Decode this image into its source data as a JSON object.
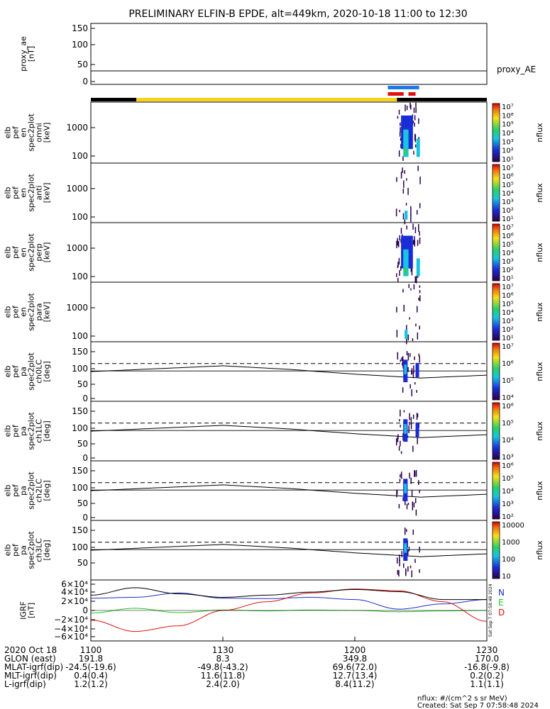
{
  "title": "PRELIMINARY ELFIN-B EPDE, alt=449km, 2020-10-18 11:00 to 12:30",
  "colors": {
    "spec_dark": "#2a004a",
    "spec_blue": "#1a2cd6",
    "spec_cyan": "#19c4e0",
    "spec_green": "#2ad064",
    "grf_n": "#1f2fbf",
    "grf_e": "#1ec41e",
    "grf_d": "#dd1111",
    "bar_yellow": "#f7d417",
    "bar_black": "#000000",
    "bar_blue": "#1e78e6",
    "bar_red": "#e01010"
  },
  "status_bars": {
    "orbit_bar": [
      {
        "from": 0,
        "to": 11.5,
        "color": "black"
      },
      {
        "from": 11.5,
        "to": 77.3,
        "color": "yellow"
      },
      {
        "from": 77.3,
        "to": 100,
        "color": "black"
      }
    ],
    "blue_bar": {
      "from": 75.0,
      "to": 82.9
    },
    "red_bars": [
      {
        "from": 75.0,
        "to": 79.0
      },
      {
        "from": 80.2,
        "to": 82.0
      }
    ]
  },
  "colorbar_unit": "nflux",
  "panels": [
    {
      "id": "proxy_ae",
      "ylabel": [
        "proxy_ae",
        "[nT]"
      ],
      "ticks": [
        "150",
        "100",
        "50",
        "0"
      ],
      "right_label": "proxy_AE"
    },
    {
      "id": "spec_omni",
      "ylabel": [
        "elb",
        "pef",
        "en",
        "spec2plot",
        "omni",
        "[keV]"
      ],
      "ticks": [
        "1000",
        "100"
      ],
      "cbar": [
        "10⁷",
        "10⁶",
        "10⁵",
        "10⁴",
        "10³",
        "10²",
        "10¹"
      ]
    },
    {
      "id": "spec_anti",
      "ylabel": [
        "elb",
        "pef",
        "en",
        "spec2plot",
        "anti",
        "[keV]"
      ],
      "ticks": [
        "1000",
        "100"
      ],
      "cbar": [
        "10⁷",
        "10⁶",
        "10⁵",
        "10⁴",
        "10³",
        "10²",
        "10¹"
      ]
    },
    {
      "id": "spec_perp",
      "ylabel": [
        "elb",
        "pef",
        "en",
        "spec2plot",
        "perp",
        "[keV]"
      ],
      "ticks": [
        "1000",
        "100"
      ],
      "cbar": [
        "10⁷",
        "10⁶",
        "10⁵",
        "10⁴",
        "10³",
        "10²",
        "10¹"
      ]
    },
    {
      "id": "spec_para",
      "ylabel": [
        "elb",
        "pef",
        "en",
        "spec2plot",
        "para",
        "[keV]"
      ],
      "ticks": [
        "1000",
        "100"
      ],
      "cbar": [
        "10⁷",
        "10⁶",
        "10⁵",
        "10⁴",
        "10³",
        "10²",
        "10¹"
      ]
    },
    {
      "id": "pa_ch0",
      "ylabel": [
        "elb",
        "pef",
        "pa",
        "spec2plot",
        "ch0LC",
        "[deg]"
      ],
      "ticks": [
        "150",
        "100",
        "50",
        "0"
      ],
      "cbar": [
        "10⁷",
        "10⁶",
        "10⁵",
        "10⁴"
      ]
    },
    {
      "id": "pa_ch1",
      "ylabel": [
        "elb",
        "pef",
        "pa",
        "spec2plot",
        "ch1LC",
        "[deg]"
      ],
      "ticks": [
        "150",
        "100",
        "50",
        "0"
      ],
      "cbar": [
        "10⁶",
        "10⁵",
        "10⁴",
        "10³"
      ]
    },
    {
      "id": "pa_ch2",
      "ylabel": [
        "elb",
        "pef",
        "pa",
        "spec2plot",
        "ch2LC",
        "[deg]"
      ],
      "ticks": [
        "150",
        "100",
        "50",
        "0"
      ],
      "cbar": [
        "10⁶",
        "10⁵",
        "10⁴",
        "10³",
        "10²"
      ]
    },
    {
      "id": "pa_ch3",
      "ylabel": [
        "elb",
        "pef",
        "pa",
        "spec2plot",
        "ch3LC",
        "[deg]"
      ],
      "ticks": [
        "150",
        "100",
        "50"
      ],
      "cbar": [
        "10000",
        "1000",
        "100",
        "10"
      ]
    },
    {
      "id": "igrf",
      "ylabel": [
        "IGRF",
        "[nT]"
      ],
      "ticks": [
        "6×10⁴",
        "4×10⁴",
        "2×10⁴",
        "0",
        "−2×10⁴",
        "−4×10⁴",
        "−6×10⁴"
      ],
      "legend": [
        "N",
        "E",
        "D"
      ],
      "side_stamp": "Sat Sep  7 07:58:48 2024"
    }
  ],
  "xaxis": {
    "labels": [
      "2020 Oct 18",
      "GLON (east)",
      "MLAT-igrf(dip)",
      "MLT-igrf(dip)",
      "L-igrf(dip)"
    ],
    "ticks": [
      {
        "t": "1100",
        "row": [
          "191.8",
          "-24.5(-19.6)",
          "0.4(0.4)",
          "1.2(1.2)"
        ]
      },
      {
        "t": "1130",
        "row": [
          "8.3",
          "-49.8(-43.2)",
          "11.6(11.8)",
          "2.4(2.0)"
        ]
      },
      {
        "t": "1200",
        "row": [
          "349.8",
          "69.6(72.0)",
          "12.7(13.4)",
          "8.4(11.2)"
        ]
      },
      {
        "t": "1230",
        "row": [
          "170.0",
          "-16.8(-9.8)",
          "0.2(0.2)",
          "1.1(1.1)"
        ]
      }
    ]
  },
  "footer": {
    "unit": "nflux: #/(cm^2 s sr MeV)",
    "created": "Created: Sat Sep  7 07:58:48 2024"
  },
  "chart_data": {
    "type": "line",
    "title": "PRELIMINARY ELFIN-B EPDE, alt=449km, 2020-10-18 11:00 to 12:30",
    "x_range_min": [
      1100,
      1230
    ],
    "proxy_ae": {
      "x": [
        1100,
        1230
      ],
      "y": [
        30,
        30
      ],
      "ylim": [
        0,
        150
      ]
    },
    "pa_solid_line": {
      "x": [
        1100,
        1115,
        1130,
        1145,
        1200,
        1215,
        1230
      ],
      "y": [
        88,
        97,
        106,
        95,
        80,
        68,
        77
      ],
      "ylim": [
        0,
        150
      ]
    },
    "pa_dashed_line": {
      "y": 113
    },
    "igrf": {
      "x": [
        1100,
        1110,
        1120,
        1130,
        1140,
        1150,
        1200,
        1210,
        1220,
        1230
      ],
      "series": [
        {
          "name": "N",
          "values": [
            28000,
            30000,
            40000,
            28000,
            27000,
            30000,
            25000,
            3000,
            15000,
            25000
          ]
        },
        {
          "name": "E",
          "values": [
            -6000,
            5000,
            -5000,
            1000,
            -1000,
            1000,
            0,
            -3000,
            -1000,
            0
          ]
        },
        {
          "name": "D",
          "values": [
            -22000,
            -48000,
            -35000,
            0,
            20000,
            40000,
            49000,
            45000,
            20000,
            -25000
          ]
        },
        {
          "name": "total",
          "values": [
            35000,
            52000,
            38000,
            30000,
            35000,
            42000,
            48000,
            43000,
            25000,
            25000
          ]
        }
      ],
      "ylim": [
        -60000,
        60000
      ]
    }
  }
}
